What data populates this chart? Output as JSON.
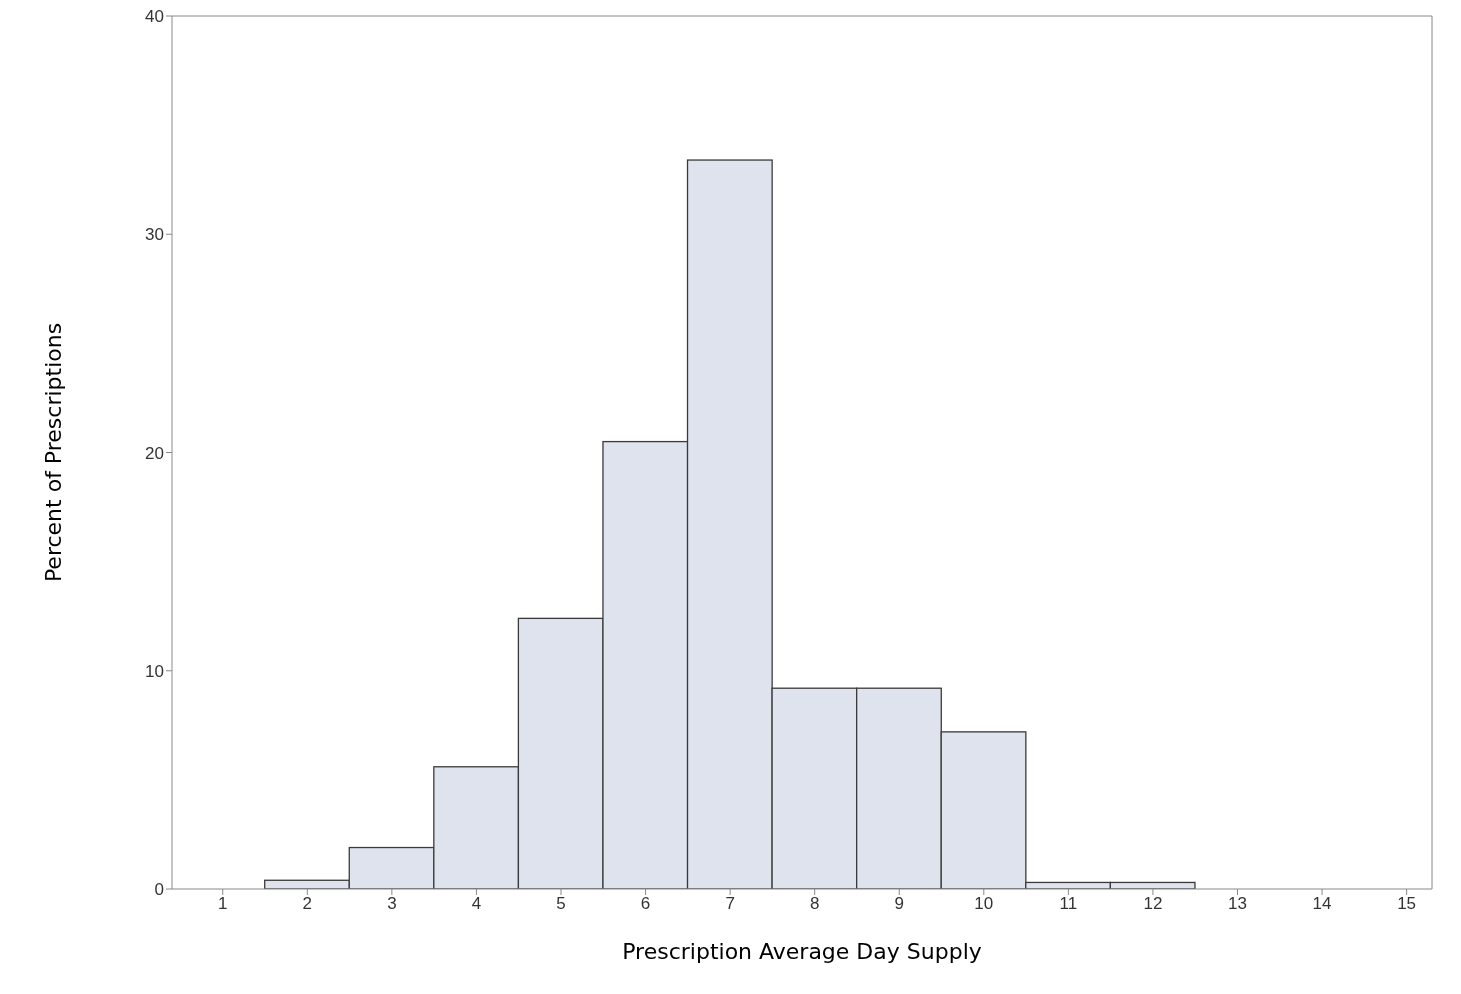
{
  "chart_data": {
    "type": "histogram",
    "xlabel": "Prescription Average Day Supply",
    "ylabel": "Percent of Prescriptions",
    "bins": [
      0.5,
      1.5,
      2.5,
      3.5,
      4.5,
      5.5,
      6.5,
      7.5,
      8.5,
      9.5,
      10.5,
      11.5,
      12.5,
      13.5,
      14.5
    ],
    "values": [
      0,
      0.4,
      1.9,
      5.6,
      12.4,
      20.5,
      33.4,
      9.2,
      9.2,
      7.2,
      0.3,
      0.3,
      0,
      0
    ],
    "color": "#dfe3ed",
    "xlim": [
      0.4,
      15.3
    ],
    "xticks": [
      1,
      2,
      3,
      4,
      5,
      6,
      7,
      8,
      9,
      10,
      11,
      12,
      13,
      14,
      15
    ],
    "ylim": [
      0,
      40
    ],
    "yticks": [
      0,
      10,
      20,
      30,
      40
    ]
  }
}
